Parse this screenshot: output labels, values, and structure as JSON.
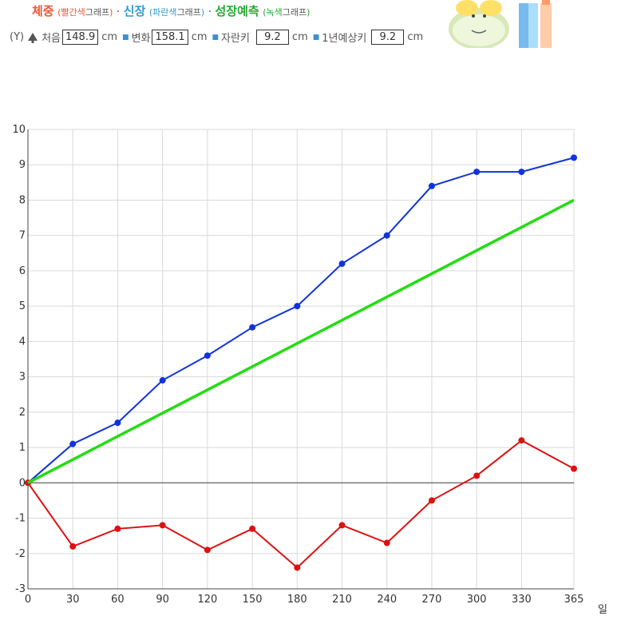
{
  "header": {
    "weight_label": "체중",
    "weight_color_note": "빨간색",
    "graph_word": "그래프",
    "height_label": "신장",
    "height_color_note": "파란색",
    "growth_label": "성장예측",
    "growth_color_note": "녹색",
    "axis_y_prefix": "(Y)",
    "first_label": "처음",
    "first_value": "148.9",
    "change_label": "변화",
    "change_value": "158.1",
    "grown_label": "자란키",
    "grown_value": "9.2",
    "predict_label": "1년예상키",
    "predict_value": "9.2",
    "unit": "cm"
  },
  "chart_data": {
    "type": "line",
    "x": [
      0,
      30,
      60,
      90,
      120,
      150,
      180,
      210,
      240,
      270,
      300,
      330,
      365
    ],
    "xlabel": "일",
    "ylabel": "",
    "xlim": [
      0,
      365
    ],
    "ylim": [
      -3,
      10
    ],
    "yticks": [
      -3,
      -2,
      -1,
      0,
      1,
      2,
      3,
      4,
      5,
      6,
      7,
      8,
      9,
      10
    ],
    "xticks": [
      0,
      30,
      60,
      90,
      120,
      150,
      180,
      210,
      240,
      270,
      300,
      330,
      365
    ],
    "grid": true,
    "legend": "none",
    "series": [
      {
        "color": "#1133dd",
        "markers": true,
        "values": [
          0,
          1.1,
          1.7,
          2.9,
          3.6,
          4.4,
          5.0,
          6.2,
          7.0,
          8.4,
          8.8,
          8.8,
          9.2
        ]
      },
      {
        "color": "#dd1111",
        "markers": true,
        "values": [
          0,
          -1.8,
          -1.3,
          -1.2,
          -1.9,
          -1.3,
          -2.4,
          -1.2,
          -1.7,
          -0.5,
          0.2,
          1.2,
          0.4
        ]
      },
      {
        "color": "#22dd11",
        "markers": false,
        "x": [
          0,
          365
        ],
        "values": [
          0,
          8.0
        ]
      }
    ]
  }
}
